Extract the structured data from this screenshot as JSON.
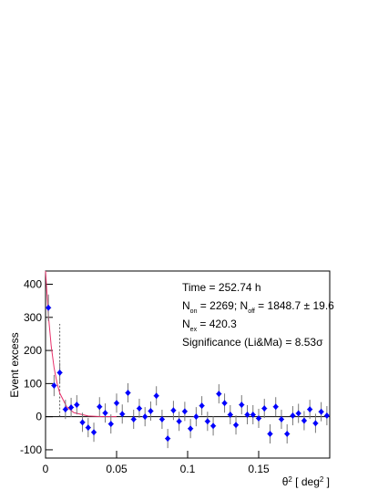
{
  "chart_data": {
    "type": "scatter",
    "ylabel": "Event excess",
    "xlabel_parts": [
      {
        "t": "θ"
      },
      {
        "t": "2",
        "sup": true
      },
      {
        "t": " [ deg"
      },
      {
        "t": "2",
        "sup": true
      },
      {
        "t": " ]"
      }
    ],
    "xlim": [
      0,
      0.2
    ],
    "ylim": [
      -125,
      440
    ],
    "xticks": [
      0,
      0.05,
      0.1,
      0.15
    ],
    "yticks": [
      -100,
      0,
      100,
      200,
      300,
      400
    ],
    "bin_width": 0.004,
    "color": "#0000ff",
    "error_color": "#777777",
    "x": [
      0.002,
      0.006,
      0.01,
      0.014,
      0.018,
      0.022,
      0.026,
      0.03,
      0.034,
      0.038,
      0.042,
      0.046,
      0.05,
      0.054,
      0.058,
      0.062,
      0.066,
      0.07,
      0.074,
      0.078,
      0.082,
      0.086,
      0.09,
      0.094,
      0.098,
      0.102,
      0.106,
      0.11,
      0.114,
      0.118,
      0.122,
      0.126,
      0.13,
      0.134,
      0.138,
      0.142,
      0.146,
      0.15,
      0.154,
      0.158,
      0.162,
      0.166,
      0.17,
      0.174,
      0.178,
      0.182,
      0.186,
      0.19,
      0.194,
      0.198
    ],
    "values": [
      329,
      94,
      133,
      22,
      28,
      36,
      -17,
      -33,
      -47,
      30,
      11,
      -22,
      41,
      8,
      72,
      -8,
      25,
      0,
      17,
      63,
      -8,
      -66,
      19,
      -14,
      16,
      -36,
      0,
      33,
      -14,
      -28,
      69,
      41,
      6,
      -25,
      36,
      6,
      6,
      -5,
      25,
      -52,
      30,
      -8,
      -52,
      3,
      10,
      -12,
      22,
      -20,
      15,
      3
    ],
    "errors": [
      40,
      32,
      30,
      29,
      29,
      29,
      29,
      29,
      29,
      29,
      29,
      29,
      29,
      29,
      29,
      29,
      29,
      29,
      29,
      29,
      29,
      29,
      29,
      29,
      29,
      29,
      29,
      29,
      29,
      29,
      29,
      29,
      29,
      29,
      29,
      29,
      29,
      29,
      29,
      29,
      29,
      29,
      29,
      29,
      29,
      29,
      29,
      29,
      29,
      29
    ],
    "fit": {
      "color": "#e8306a",
      "x": [
        0,
        0.002,
        0.004,
        0.006,
        0.008,
        0.01,
        0.015,
        0.02,
        0.03,
        0.04,
        0.05
      ],
      "y": [
        440,
        306,
        213,
        148,
        103,
        71,
        29,
        12,
        2,
        0,
        0
      ]
    },
    "cut": {
      "x": 0.01,
      "top": 280,
      "color": "#555555"
    },
    "annotations": [
      [
        {
          "t": "Time = 252.74 h"
        }
      ],
      [
        {
          "t": "N"
        },
        {
          "t": "on",
          "sub": true
        },
        {
          "t": " = 2269; N"
        },
        {
          "t": "off",
          "sub": true
        },
        {
          "t": " = 1848.7 ± 19.6"
        }
      ],
      [
        {
          "t": "N"
        },
        {
          "t": "ex",
          "sub": true
        },
        {
          "t": " = 420.3"
        }
      ],
      [
        {
          "t": "Significance (Li&Ma) = 8.53σ"
        }
      ]
    ]
  }
}
